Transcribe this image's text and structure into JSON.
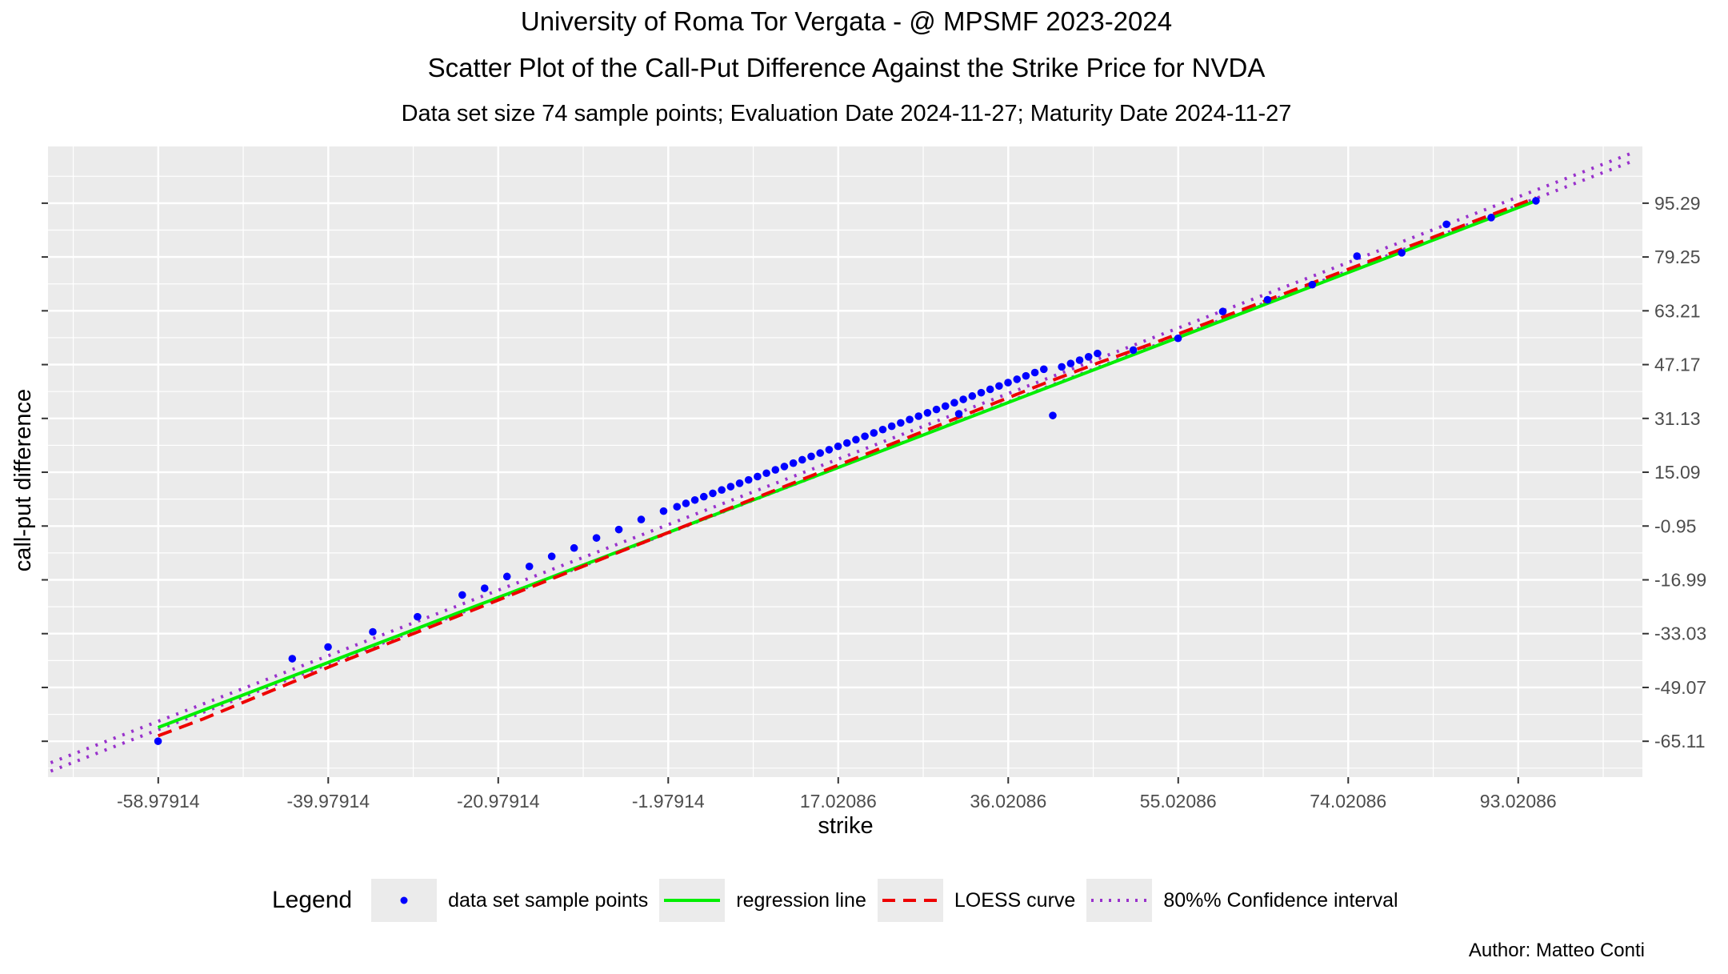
{
  "chart_data": {
    "type": "scatter",
    "title": "University of Roma Tor Vergata - @ MPSMF 2023-2024",
    "subtitle": "Scatter Plot of the Call-Put Difference Against the Strike Price for  NVDA",
    "caption": "Data set size  74  sample points;     Evaluation Date 2024-11-27;    Maturity Date 2024-11-27",
    "xlabel": "strike",
    "ylabel": "call-put difference",
    "xlim": [
      -71.3,
      106.9
    ],
    "ylim": [
      -75.8,
      112.2
    ],
    "x_ticks": [
      -58.97914,
      -39.97914,
      -20.97914,
      -1.97914,
      17.02086,
      36.02086,
      55.02086,
      74.02086,
      93.02086
    ],
    "x_tick_labels": [
      "-58.97914",
      "-39.97914",
      "-20.97914",
      "-1.97914",
      "17.02086",
      "36.02086",
      "55.02086",
      "74.02086",
      "93.02086"
    ],
    "y_ticks": [
      -65.11,
      -49.07,
      -33.03,
      -16.99,
      -0.95,
      15.09,
      31.13,
      47.17,
      63.21,
      79.25,
      95.29
    ],
    "y_tick_labels": [
      "-65.11",
      "-49.07",
      "-33.03",
      "-16.99",
      "-0.95",
      "15.09",
      "31.13",
      "47.17",
      "63.21",
      "79.25",
      "95.29"
    ],
    "y_axis_position": "right",
    "grid": true,
    "legend_position": "bottom",
    "series": [
      {
        "name": "data set sample points",
        "kind": "points",
        "color": "#0000ff",
        "x": [
          -59.0,
          -44.0,
          -40.0,
          -35.0,
          -30.0,
          -25.0,
          -22.5,
          -20.0,
          -17.5,
          -15.0,
          -12.5,
          -10.0,
          -7.5,
          -5.0,
          -2.5,
          -1.0,
          0.0,
          1.0,
          2.0,
          3.0,
          4.0,
          5.0,
          6.0,
          7.0,
          8.0,
          9.0,
          10.0,
          11.0,
          12.0,
          13.0,
          14.0,
          15.0,
          16.0,
          17.0,
          18.0,
          19.0,
          20.0,
          21.0,
          22.0,
          23.0,
          24.0,
          25.0,
          26.0,
          27.0,
          28.0,
          29.0,
          30.0,
          31.0,
          32.0,
          33.0,
          34.0,
          35.0,
          36.0,
          37.0,
          38.0,
          39.0,
          40.0,
          41.0,
          42.0,
          43.0,
          44.0,
          45.0,
          46.0,
          50.0,
          55.0,
          60.0,
          65.0,
          70.0,
          75.0,
          80.0,
          85.0,
          90.0,
          95.0,
          30.5
        ],
        "y": [
          -65.1,
          -40.5,
          -37.0,
          -32.5,
          -28.0,
          -21.5,
          -19.5,
          -16.0,
          -13.0,
          -10.0,
          -7.5,
          -4.5,
          -2.0,
          1.0,
          3.5,
          4.8,
          5.8,
          6.8,
          7.8,
          8.8,
          9.8,
          10.8,
          11.8,
          12.8,
          13.8,
          14.8,
          15.8,
          16.8,
          17.8,
          18.8,
          19.8,
          20.8,
          21.8,
          22.8,
          23.8,
          24.8,
          25.8,
          26.8,
          27.8,
          28.8,
          29.8,
          30.8,
          31.8,
          32.8,
          33.8,
          34.8,
          35.8,
          36.8,
          37.8,
          38.8,
          39.8,
          40.8,
          41.8,
          42.8,
          43.8,
          44.8,
          45.8,
          32.0,
          46.5,
          47.5,
          48.5,
          49.5,
          50.5,
          51.5,
          55.0,
          63.0,
          66.5,
          71.0,
          79.5,
          80.5,
          89.0,
          91.0,
          96.0,
          32.5
        ]
      },
      {
        "name": "regression line",
        "kind": "line",
        "color": "#00ee00",
        "x": [
          -59.0,
          95.0
        ],
        "y": [
          -61.0,
          96.0
        ]
      },
      {
        "name": "LOESS curve",
        "kind": "dashed",
        "color": "#ee0000",
        "x": [
          -59.0,
          -54.0,
          -49.0,
          -44.0,
          -39.0,
          -34.0,
          -29.0,
          40.0,
          46.0,
          52.0,
          58.0,
          64.0,
          70.0,
          76.0,
          82.0,
          88.0,
          95.0
        ],
        "y": [
          -63.5,
          -58.5,
          -53.0,
          -47.5,
          -42.0,
          -36.7,
          -31.5,
          41.5,
          47.6,
          53.3,
          59.3,
          65.4,
          71.5,
          77.6,
          83.6,
          89.8,
          96.9
        ]
      },
      {
        "name": "80%% Confidence interval",
        "kind": "dotted",
        "color": "#9932cc",
        "x": [
          -71.0,
          106.0
        ],
        "y": [
          -71.5,
          110.5
        ]
      },
      {
        "name": "80%% Confidence interval lower",
        "kind": "dotted",
        "color": "#9932cc",
        "x": [
          -71.0,
          106.0
        ],
        "y": [
          -74.0,
          108.0
        ]
      }
    ]
  },
  "legend": {
    "title": "Legend",
    "items": [
      {
        "label": "data set sample points",
        "kind": "points",
        "color": "#0000ff"
      },
      {
        "label": "regression line",
        "kind": "line",
        "color": "#00ee00"
      },
      {
        "label": "LOESS curve",
        "kind": "dashed",
        "color": "#ee0000"
      },
      {
        "label": "80%% Confidence interval",
        "kind": "dotted",
        "color": "#9932cc"
      }
    ]
  },
  "author": "Author: Matteo Conti"
}
